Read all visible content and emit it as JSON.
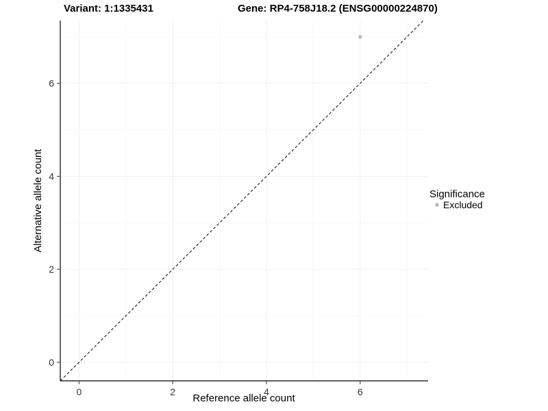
{
  "header": {
    "variant_title": "Variant: 1:1335431",
    "gene_title": "Gene: RP4-758J18.2 (ENSG00000224870)"
  },
  "chart_data": {
    "type": "scatter",
    "title": "Variant: 1:1335431 / Gene: RP4-758J18.2 (ENSG00000224870)",
    "xlabel": "Reference allele count",
    "ylabel": "Alternative allele count",
    "xlim": [
      -0.4,
      7.45
    ],
    "ylim": [
      -0.4,
      7.35
    ],
    "xticks": [
      0,
      2,
      4,
      6
    ],
    "yticks": [
      0,
      2,
      4,
      6
    ],
    "minor_xticks": [
      1,
      3,
      5,
      7
    ],
    "minor_yticks": [
      1,
      3,
      5,
      7
    ],
    "grid": true,
    "reference_line": {
      "type": "identity",
      "equation": "y = x",
      "style": "dashed",
      "color": "#000000"
    },
    "series": [
      {
        "name": "Excluded",
        "color": "#b8b8b8",
        "points": [
          {
            "x": 6,
            "y": 7
          }
        ]
      }
    ],
    "legend": {
      "title": "Significance",
      "position": "right",
      "entries": [
        {
          "label": "Excluded",
          "color": "#b8b8b8"
        }
      ]
    }
  },
  "colors": {
    "background": "#ffffff",
    "axis_line": "#000000",
    "tick_mark": "#333333",
    "tick_label": "#333333",
    "grid_major": "#efefef",
    "grid_minor": "#f8f8f8"
  }
}
